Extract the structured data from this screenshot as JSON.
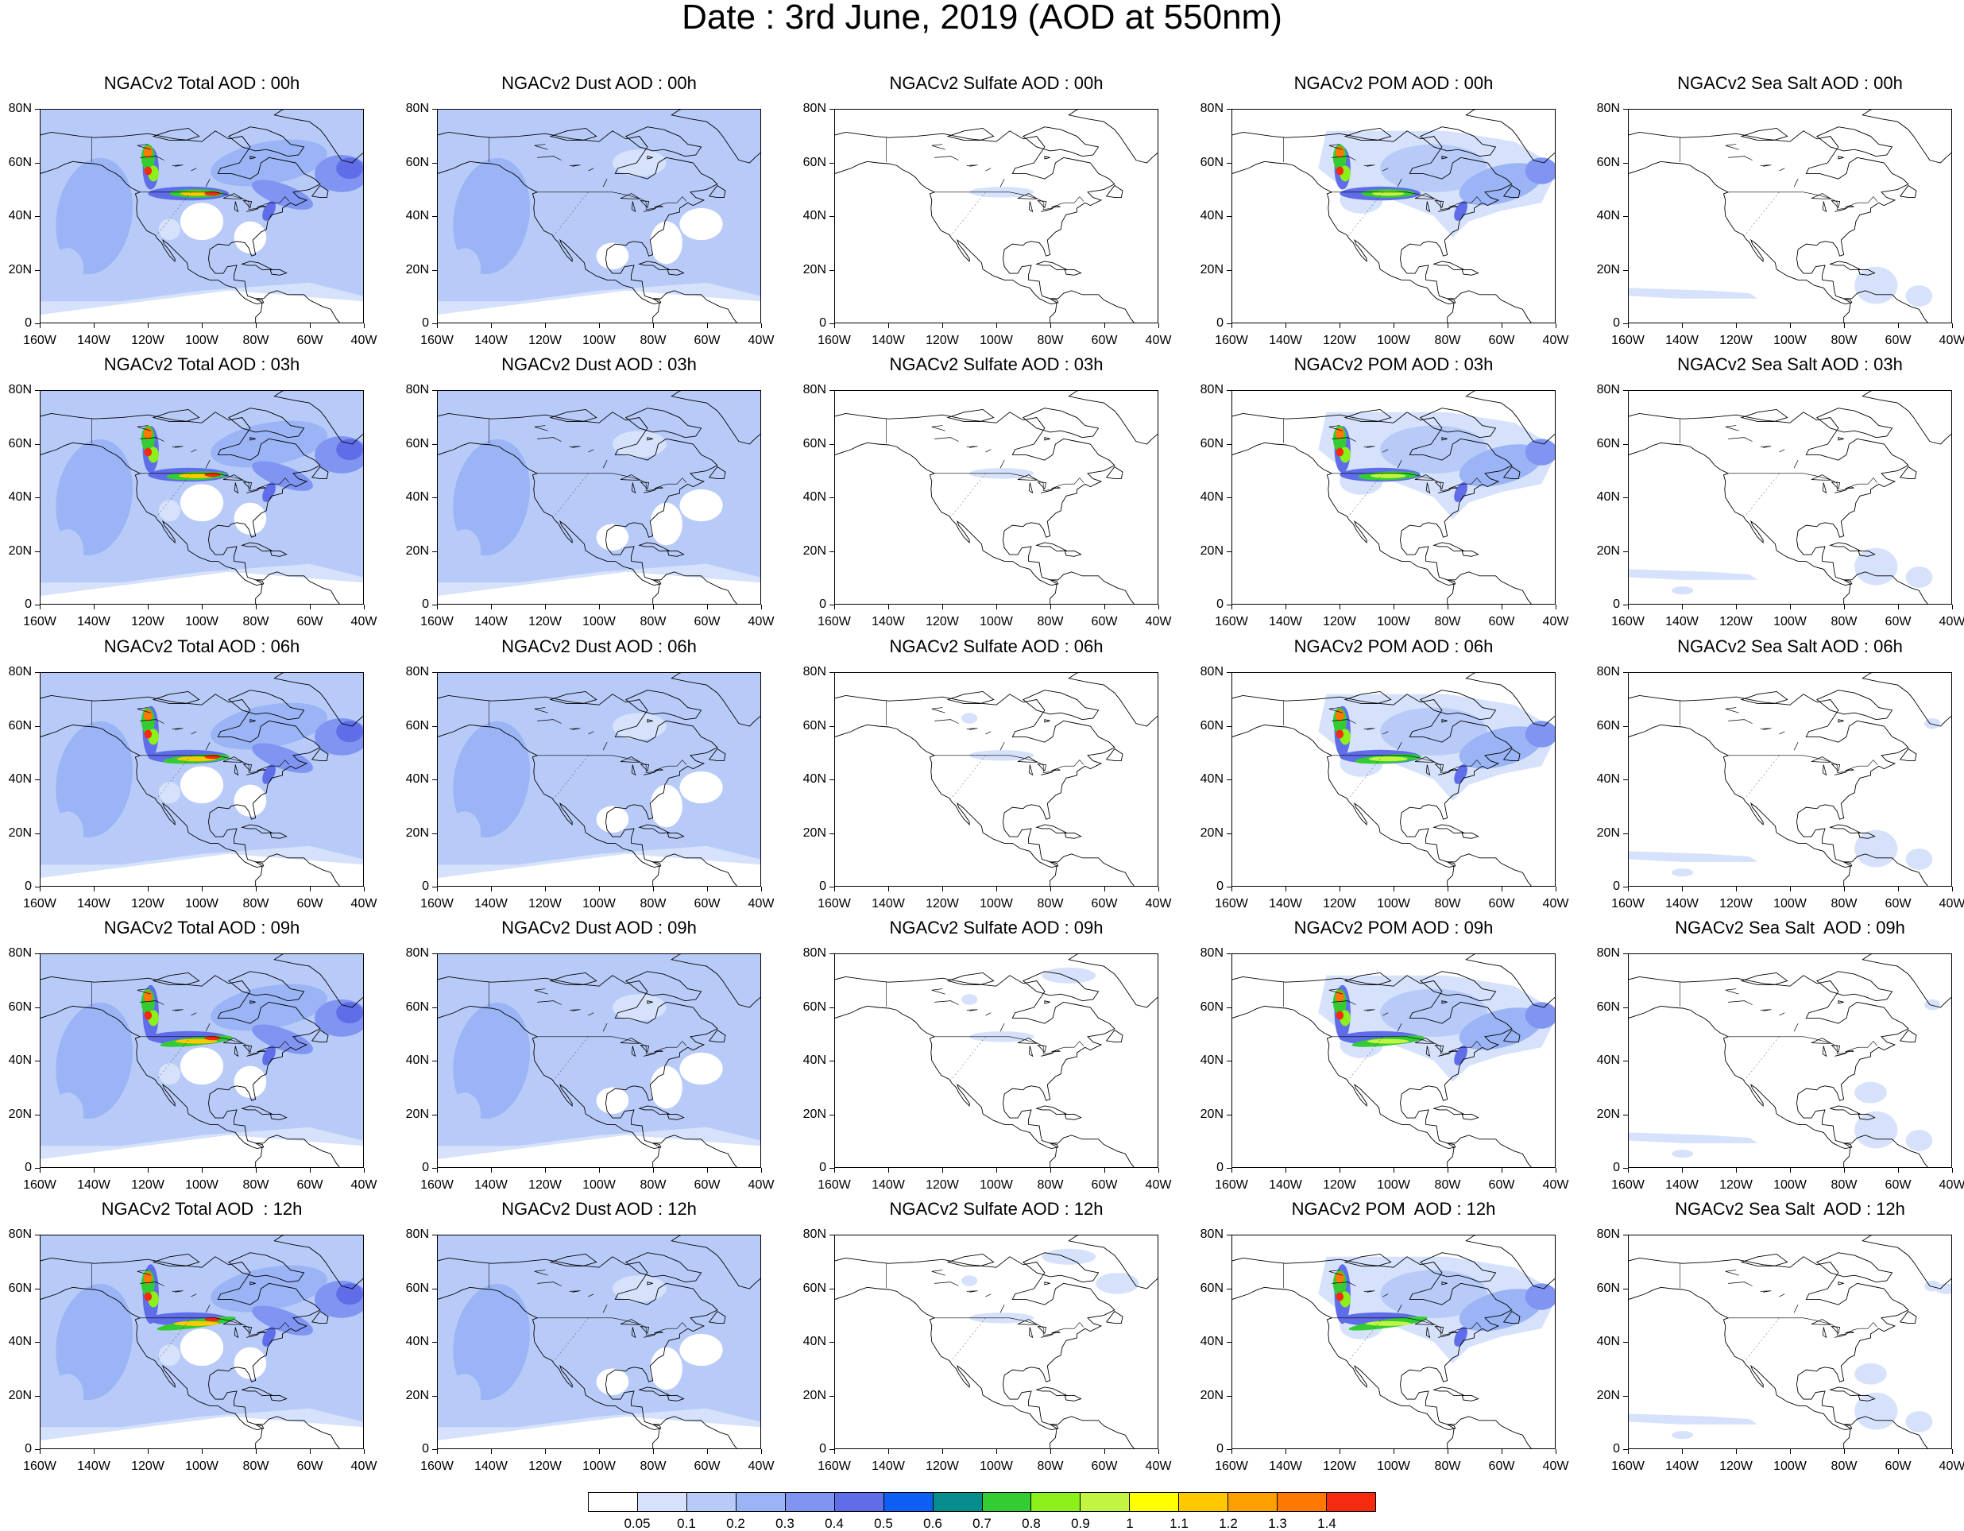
{
  "title": "Date : 3rd June, 2019 (AOD at 550nm)",
  "lat_labels": [
    "80N",
    "60N",
    "40N",
    "20N",
    "0"
  ],
  "lon_labels": [
    "160W",
    "140W",
    "120W",
    "100W",
    "80W",
    "60W",
    "40W"
  ],
  "panel_titles": [
    [
      "NGACv2 Total AOD : 00h",
      "NGACv2 Dust AOD : 00h",
      "NGACv2 Sulfate AOD : 00h",
      "NGACv2 POM AOD : 00h",
      "NGACv2 Sea Salt AOD : 00h"
    ],
    [
      "NGACv2 Total AOD : 03h",
      "NGACv2 Dust AOD : 03h",
      "NGACv2 Sulfate AOD : 03h",
      "NGACv2 POM AOD : 03h",
      "NGACv2 Sea Salt AOD : 03h"
    ],
    [
      "NGACv2 Total AOD : 06h",
      "NGACv2 Dust AOD : 06h",
      "NGACv2 Sulfate AOD : 06h",
      "NGACv2 POM AOD : 06h",
      "NGACv2 Sea Salt AOD : 06h"
    ],
    [
      "NGACv2 Total AOD : 09h",
      "NGACv2 Dust AOD : 09h",
      "NGACv2 Sulfate AOD : 09h",
      "NGACv2 POM AOD : 09h",
      "NGACv2 Sea Salt  AOD : 09h"
    ],
    [
      "NGACv2 Total AOD  : 12h",
      "NGACv2 Dust AOD : 12h",
      "NGACv2 Sulfate AOD : 12h",
      "NGACv2 POM  AOD : 12h",
      "NGACv2 Sea Salt  AOD : 12h"
    ]
  ],
  "colorbar": {
    "colors": [
      "#ffffff",
      "#d6e2fb",
      "#b8cbf8",
      "#9ab4f5",
      "#7f95f1",
      "#5f6de8",
      "#0d5ef3",
      "#058c8c",
      "#33cc33",
      "#8cf01a",
      "#c2f542",
      "#ffff00",
      "#ffc800",
      "#ffa000",
      "#ff7800",
      "#f52a0e"
    ],
    "labels": [
      "0.05",
      "0.1",
      "0.2",
      "0.3",
      "0.4",
      "0.5",
      "0.6",
      "0.7",
      "0.8",
      "0.9",
      "1",
      "1.1",
      "1.2",
      "1.3",
      "1.4"
    ]
  }
}
